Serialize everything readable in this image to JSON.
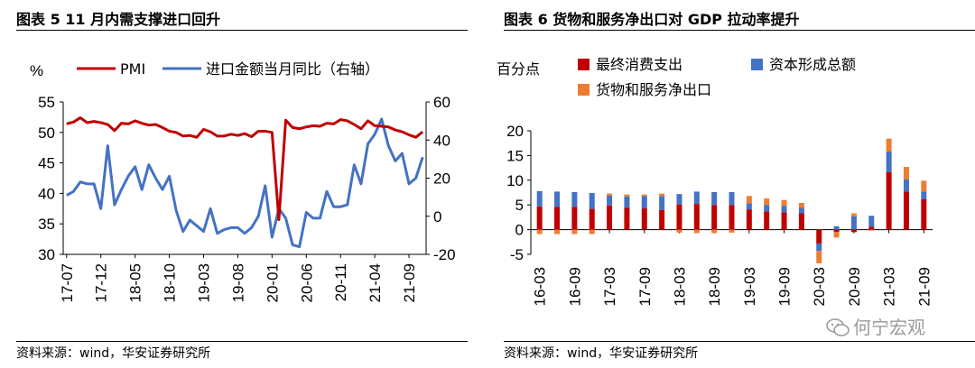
{
  "left_panel": {
    "title": "图表 5 11 月内需支撑进口回升",
    "source": "资料来源：wind，华安证券研究所"
  },
  "right_panel": {
    "title": "图表 6  货物和服务净出口对 GDP 拉动率提升",
    "source": "资料来源：wind，华安证券研究所"
  },
  "watermark": {
    "text": "何宁宏观",
    "icon": "wechat-icon"
  },
  "chart_data": [
    {
      "type": "line",
      "unit_label": "%",
      "legend": [
        "PMI",
        "进口金额当月同比（右轴）"
      ],
      "colors": {
        "PMI": "#c00000",
        "import": "#4472c4"
      },
      "x_tick_labels": [
        "17-07",
        "17-12",
        "18-05",
        "18-10",
        "19-03",
        "19-08",
        "20-01",
        "20-06",
        "20-11",
        "21-04",
        "21-09"
      ],
      "ylim_left": [
        30,
        55
      ],
      "yticks_left": [
        30,
        35,
        40,
        45,
        50,
        55
      ],
      "ylim_right": [
        -20,
        60
      ],
      "yticks_right": [
        -20,
        0,
        20,
        40,
        60
      ],
      "months": [
        "17-07",
        "17-08",
        "17-09",
        "17-10",
        "17-11",
        "17-12",
        "18-01",
        "18-02",
        "18-03",
        "18-04",
        "18-05",
        "18-06",
        "18-07",
        "18-08",
        "18-09",
        "18-10",
        "18-11",
        "18-12",
        "19-01",
        "19-02",
        "19-03",
        "19-04",
        "19-05",
        "19-06",
        "19-07",
        "19-08",
        "19-09",
        "19-10",
        "19-11",
        "19-12",
        "20-01",
        "20-02",
        "20-03",
        "20-04",
        "20-05",
        "20-06",
        "20-07",
        "20-08",
        "20-09",
        "20-10",
        "20-11",
        "20-12",
        "21-01",
        "21-02",
        "21-03",
        "21-04",
        "21-05",
        "21-06",
        "21-07",
        "21-08",
        "21-09",
        "21-10",
        "21-11"
      ],
      "series": [
        {
          "name": "PMI",
          "axis": "left",
          "values": [
            51.4,
            51.7,
            52.4,
            51.6,
            51.8,
            51.6,
            51.3,
            50.3,
            51.5,
            51.4,
            51.9,
            51.5,
            51.2,
            51.3,
            50.8,
            50.2,
            50.0,
            49.4,
            49.5,
            49.2,
            50.5,
            50.1,
            49.4,
            49.4,
            49.7,
            49.5,
            49.8,
            49.3,
            50.2,
            50.2,
            50.0,
            35.7,
            52.0,
            50.8,
            50.6,
            50.9,
            51.1,
            51.0,
            51.5,
            51.4,
            52.1,
            51.9,
            51.3,
            50.6,
            51.9,
            51.1,
            51.0,
            50.9,
            50.4,
            50.1,
            49.6,
            49.2,
            50.1
          ]
        },
        {
          "name": "进口金额当月同比（右轴）",
          "axis": "right",
          "values": [
            11,
            13,
            18,
            17,
            17,
            4,
            37,
            6,
            14,
            21,
            26,
            14,
            27,
            20,
            14,
            21,
            3,
            -8,
            -2,
            -5,
            -8,
            4,
            -9,
            -7,
            -6,
            -6,
            -9,
            -6,
            0,
            16,
            -11,
            4,
            -1,
            -15,
            -16,
            2,
            -1,
            -1,
            13,
            5,
            5,
            6,
            27,
            17,
            38,
            43,
            51,
            37,
            29,
            33,
            17,
            20,
            31
          ]
        }
      ]
    },
    {
      "type": "bar",
      "stacked": true,
      "unit_label": "百分点",
      "colors": {
        "最终消费支出": "#c00000",
        "资本形成总额": "#4472c4",
        "货物和服务净出口": "#ed7d31"
      },
      "x_tick_labels": [
        "16-03",
        "16-09",
        "17-03",
        "17-09",
        "18-03",
        "18-09",
        "19-03",
        "19-09",
        "20-03",
        "20-09",
        "21-03",
        "21-09"
      ],
      "ylim": [
        -5,
        20
      ],
      "yticks": [
        -5,
        0,
        5,
        10,
        15,
        20
      ],
      "categories": [
        "16-03",
        "16-06",
        "16-09",
        "16-12",
        "17-03",
        "17-06",
        "17-09",
        "17-12",
        "18-03",
        "18-06",
        "18-09",
        "18-12",
        "19-03",
        "19-06",
        "19-09",
        "19-12",
        "20-03",
        "20-06",
        "20-09",
        "20-12",
        "21-03",
        "21-06",
        "21-09"
      ],
      "series": [
        {
          "name": "最终消费支出",
          "values": [
            4.7,
            4.6,
            4.6,
            4.2,
            4.9,
            4.4,
            4.3,
            4.0,
            5.1,
            5.2,
            5.0,
            5.0,
            4.1,
            3.7,
            3.5,
            3.3,
            -2.8,
            -0.5,
            -0.5,
            0.6,
            11.6,
            7.7,
            6.2
          ]
        },
        {
          "name": "资本形成总额",
          "values": [
            3.1,
            3.1,
            3.0,
            3.2,
            2.0,
            2.3,
            2.5,
            2.8,
            2.1,
            2.5,
            2.6,
            2.6,
            1.2,
            1.3,
            1.3,
            1.1,
            -1.5,
            0.7,
            2.7,
            2.2,
            4.2,
            2.5,
            1.5
          ]
        },
        {
          "name": "货物和服务净出口",
          "values": [
            -0.9,
            -0.9,
            -0.9,
            -0.9,
            0.4,
            0.4,
            0.3,
            0.5,
            -0.6,
            -0.7,
            -0.7,
            -0.6,
            1.5,
            1.3,
            1.2,
            1.0,
            -2.5,
            -1.1,
            0.6,
            -0.2,
            2.6,
            2.5,
            2.2
          ]
        }
      ]
    }
  ]
}
